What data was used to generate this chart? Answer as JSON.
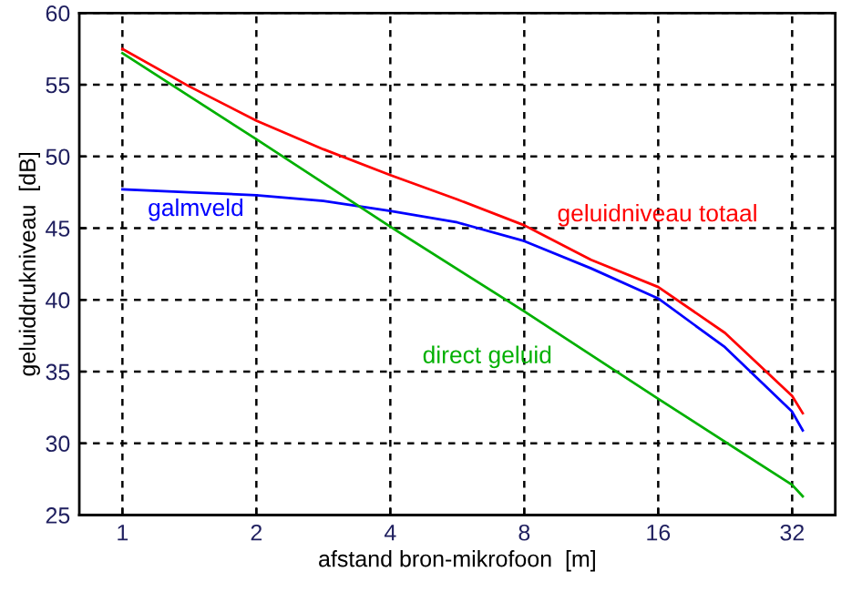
{
  "chart_data": {
    "type": "line",
    "xlabel": "afstand bron-mikrofoon  [m]",
    "ylabel": "geluiddrukniveau  [dB]",
    "log": "x",
    "xlim": [
      0.8,
      40
    ],
    "xticks": [
      1,
      2,
      4,
      8,
      16,
      32
    ],
    "ylim": [
      25,
      60
    ],
    "yticks": [
      25,
      30,
      35,
      40,
      45,
      50,
      55,
      60
    ],
    "grid": true,
    "line_style": "solid",
    "marker": "none",
    "series": [
      {
        "name": "geluidniveau totaal",
        "color": "#ff0000",
        "x": [
          1,
          1.41,
          2,
          2.83,
          4,
          5.66,
          8,
          11.3,
          16,
          22.6,
          32,
          33.8
        ],
        "values": [
          57.5,
          54.9,
          52.5,
          50.5,
          48.7,
          47.0,
          45.2,
          42.8,
          40.9,
          37.7,
          33.3,
          32.1
        ]
      },
      {
        "name": "galmveld",
        "color": "#0000ff",
        "x": [
          1,
          1.41,
          2,
          2.83,
          4,
          5.66,
          8,
          11.3,
          16,
          22.6,
          32,
          33.8
        ],
        "values": [
          47.7,
          47.5,
          47.3,
          46.9,
          46.2,
          45.4,
          44.1,
          42.2,
          40.1,
          36.7,
          32.2,
          30.9
        ]
      },
      {
        "name": "direct geluid",
        "color": "#00b000",
        "x": [
          1,
          2,
          4,
          8,
          16,
          32,
          33.8
        ],
        "values": [
          57.2,
          51.2,
          45.1,
          39.2,
          33.1,
          27.1,
          26.3
        ]
      }
    ]
  }
}
